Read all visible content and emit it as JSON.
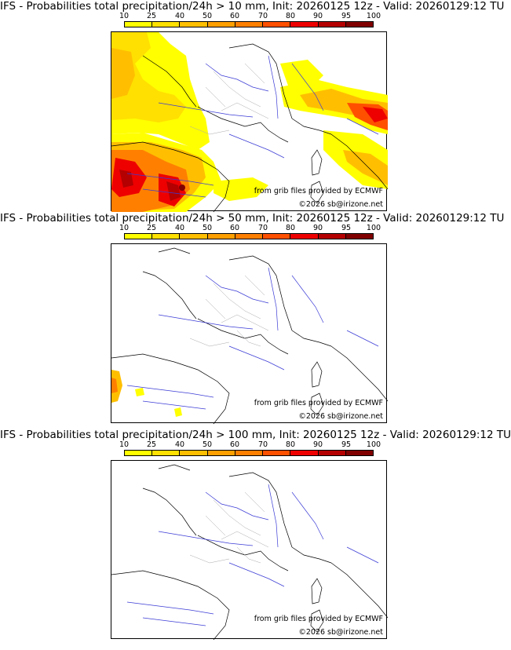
{
  "colorbar": {
    "labels": [
      "10",
      "25",
      "40",
      "50",
      "60",
      "70",
      "80",
      "90",
      "95",
      "100"
    ],
    "colors": [
      "#ffff00",
      "#ffe000",
      "#ffbf00",
      "#ffa000",
      "#ff8000",
      "#ff5000",
      "#ee0000",
      "#b40000",
      "#800000",
      "#4d0000"
    ]
  },
  "panels": [
    {
      "title": "IFS - Probabilities total precipitation/24h > 10 mm, Init: 20260125 12z - Valid: 20260129:12 TU",
      "source_credit": "from grib files provided by ECMWF",
      "copyright": "©2026 sb@irizone.net"
    },
    {
      "title": "IFS - Probabilities total precipitation/24h > 50 mm, Init: 20260125 12z - Valid: 20260129:12 TU",
      "source_credit": "from grib files provided by ECMWF",
      "copyright": "©2026 sb@irizone.net"
    },
    {
      "title": "IFS - Probabilities total precipitation/24h > 100 mm, Init: 20260125 12z - Valid: 20260129:12 TU",
      "source_credit": "from grib files provided by ECMWF",
      "copyright": "©2026 sb@irizone.net"
    }
  ]
}
